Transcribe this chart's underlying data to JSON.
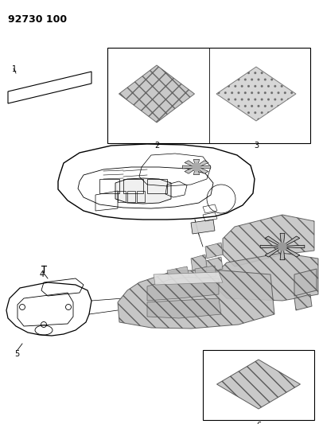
{
  "title": "92730 100",
  "bg": "#ffffff",
  "lc": "#000000",
  "gray_light": "#d0d0d0",
  "gray_med": "#b0b0b0",
  "gray_dark": "#888888",
  "figsize": [
    4.02,
    5.33
  ],
  "dpi": 100
}
